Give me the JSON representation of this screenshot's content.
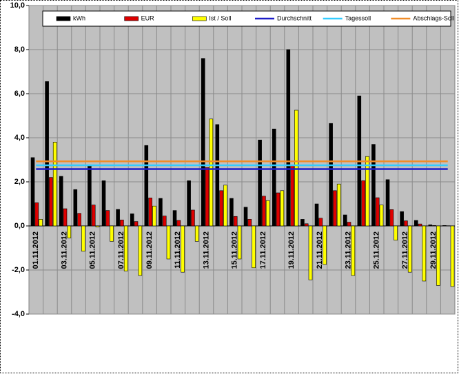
{
  "chart_data": {
    "type": "bar",
    "categories": [
      "01.11.2012",
      null,
      "03.11.2012",
      null,
      "05.11.2012",
      null,
      "07.11.2012",
      null,
      "09.11.2012",
      null,
      "11.11.2012",
      null,
      "13.11.2012",
      null,
      "15.11.2012",
      null,
      "17.11.2012",
      null,
      "19.11.2012",
      null,
      "21.11.2012",
      null,
      "23.11.2012",
      null,
      "25.11.2012",
      null,
      "27.11.2012",
      null,
      "29.11.2012",
      null
    ],
    "series": [
      {
        "name": "kWh",
        "type": "bar",
        "color": "#000000",
        "values": [
          3.1,
          6.55,
          2.25,
          1.65,
          2.75,
          2.05,
          0.75,
          0.55,
          3.65,
          1.25,
          0.7,
          2.05,
          7.6,
          4.6,
          1.25,
          0.85,
          3.9,
          4.4,
          8.0,
          0.3,
          1.0,
          4.65,
          0.5,
          5.9,
          3.7,
          2.1,
          0.65,
          0.25,
          0.05,
          0.02
        ]
      },
      {
        "name": "EUR",
        "type": "bar",
        "color": "#dd0000",
        "values": [
          1.05,
          2.2,
          0.78,
          0.57,
          0.95,
          0.7,
          0.27,
          0.2,
          1.27,
          0.45,
          0.25,
          0.72,
          2.65,
          1.6,
          0.43,
          0.3,
          1.35,
          1.5,
          2.75,
          0.1,
          0.35,
          1.6,
          0.17,
          2.05,
          1.28,
          0.74,
          0.23,
          0.09,
          0.02,
          0.01
        ]
      },
      {
        "name": "Ist / Soll",
        "type": "bar",
        "color": "#ffff00",
        "values": [
          0.3,
          3.8,
          -0.55,
          -1.15,
          -0.05,
          -0.7,
          -2.05,
          -2.25,
          0.9,
          -1.5,
          -2.1,
          -0.7,
          4.85,
          1.85,
          -1.5,
          -1.9,
          1.15,
          1.6,
          5.25,
          -2.45,
          -1.75,
          1.9,
          -2.25,
          3.15,
          0.95,
          -0.65,
          -2.1,
          -2.5,
          -2.7,
          -2.75
        ]
      },
      {
        "name": "Durchschnitt",
        "type": "line",
        "color": "#1c1cc8",
        "values": [
          2.58,
          2.58,
          2.58,
          2.58,
          2.58,
          2.58,
          2.58,
          2.58,
          2.58,
          2.58,
          2.58,
          2.58,
          2.58,
          2.58,
          2.58,
          2.58,
          2.58,
          2.58,
          2.58,
          2.58,
          2.58,
          2.58,
          2.58,
          2.58,
          2.58,
          2.58,
          2.58,
          2.58,
          2.58,
          2.58
        ]
      },
      {
        "name": "Tagessoll",
        "type": "line",
        "color": "#33ccff",
        "values": [
          2.75,
          2.75,
          2.75,
          2.75,
          2.75,
          2.75,
          2.75,
          2.75,
          2.75,
          2.75,
          2.75,
          2.75,
          2.75,
          2.75,
          2.75,
          2.75,
          2.75,
          2.75,
          2.75,
          2.75,
          2.75,
          2.75,
          2.75,
          2.75,
          2.75,
          2.75,
          2.75,
          2.75,
          2.75,
          2.75
        ]
      },
      {
        "name": "Abschlags-Soll",
        "type": "line",
        "color": "#f08c28",
        "values": [
          2.93,
          2.93,
          2.93,
          2.93,
          2.93,
          2.93,
          2.93,
          2.93,
          2.93,
          2.93,
          2.93,
          2.93,
          2.93,
          2.93,
          2.93,
          2.93,
          2.93,
          2.93,
          2.93,
          2.93,
          2.93,
          2.93,
          2.93,
          2.93,
          2.93,
          2.93,
          2.93,
          2.93,
          2.93,
          2.93
        ]
      }
    ],
    "ylim": [
      -4,
      10
    ],
    "yticks": [
      {
        "value": -4,
        "label": "-4,0"
      },
      {
        "value": -2,
        "label": "-2,0"
      },
      {
        "value": 0,
        "label": "0,0"
      },
      {
        "value": 2,
        "label": "2,0"
      },
      {
        "value": 4,
        "label": "4,0"
      },
      {
        "value": 6,
        "label": "6,0"
      },
      {
        "value": 8,
        "label": "8,0"
      },
      {
        "value": 10,
        "label": "10,0"
      }
    ],
    "grid": true,
    "legend": "top"
  }
}
